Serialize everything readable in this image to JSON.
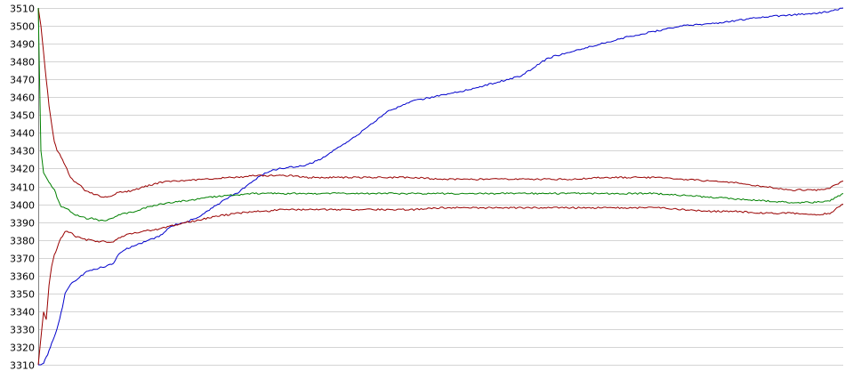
{
  "chart_data": {
    "type": "line",
    "title": "",
    "xlabel": "",
    "ylabel": "",
    "ylim": [
      3310,
      3510
    ],
    "yticks": [
      3310,
      3320,
      3330,
      3340,
      3350,
      3360,
      3370,
      3380,
      3390,
      3400,
      3410,
      3420,
      3430,
      3440,
      3450,
      3460,
      3470,
      3480,
      3490,
      3500,
      3510
    ],
    "yticks_labels": [
      "3310",
      "3320",
      "3330",
      "3340",
      "3350",
      "3360",
      "3370",
      "3380",
      "3390",
      "3400",
      "3410",
      "3420",
      "3430",
      "3440",
      "3450",
      "3460",
      "3470",
      "3480",
      "3490",
      "3500",
      "3510"
    ],
    "xlim": [
      0,
      300
    ],
    "grid": true,
    "legend": "none",
    "x": [
      0,
      1,
      2,
      3,
      4,
      5,
      6,
      7,
      8,
      9,
      10,
      12,
      14,
      16,
      18,
      20,
      22,
      25,
      28,
      30,
      33,
      36,
      40,
      45,
      50,
      55,
      60,
      65,
      70,
      75,
      80,
      85,
      90,
      95,
      100,
      105,
      110,
      115,
      120,
      130,
      140,
      150,
      160,
      170,
      180,
      190,
      200,
      210,
      220,
      230,
      240,
      250,
      260,
      270,
      280,
      290,
      295,
      300
    ],
    "series": [
      {
        "color": "#0000cc",
        "values": [
          3310,
          3310,
          3311,
          3314,
          3318,
          3322,
          3326,
          3330,
          3336,
          3342,
          3350,
          3355,
          3357,
          3360,
          3362,
          3363,
          3364,
          3365,
          3367,
          3372,
          3375,
          3377,
          3379,
          3382,
          3388,
          3390,
          3393,
          3398,
          3403,
          3407,
          3413,
          3418,
          3420,
          3421,
          3422,
          3425,
          3430,
          3435,
          3440,
          3452,
          3458,
          3461,
          3464,
          3468,
          3472,
          3482,
          3486,
          3490,
          3494,
          3497,
          3500,
          3501,
          3503,
          3505,
          3506,
          3507,
          3508,
          3510
        ]
      },
      {
        "color": "#990000",
        "values": [
          3510,
          3500,
          3485,
          3470,
          3455,
          3445,
          3435,
          3430,
          3428,
          3425,
          3422,
          3415,
          3412,
          3410,
          3407,
          3406,
          3405,
          3404,
          3405,
          3407,
          3407,
          3408,
          3410,
          3412,
          3413,
          3413,
          3414,
          3414,
          3415,
          3415,
          3416,
          3416,
          3416,
          3416,
          3415,
          3415,
          3415,
          3415,
          3415,
          3415,
          3415,
          3414,
          3414,
          3414,
          3414,
          3414,
          3414,
          3415,
          3415,
          3415,
          3414,
          3413,
          3412,
          3410,
          3408,
          3408,
          3409,
          3413
        ]
      },
      {
        "color": "#008000",
        "values": [
          3510,
          3430,
          3418,
          3415,
          3412,
          3410,
          3408,
          3404,
          3400,
          3398,
          3398,
          3396,
          3394,
          3393,
          3392,
          3392,
          3391,
          3391,
          3392,
          3394,
          3395,
          3396,
          3398,
          3400,
          3401,
          3402,
          3403,
          3404,
          3405,
          3405,
          3406,
          3406,
          3406,
          3406,
          3406,
          3406,
          3406,
          3406,
          3406,
          3406,
          3406,
          3406,
          3406,
          3406,
          3406,
          3406,
          3406,
          3406,
          3406,
          3406,
          3405,
          3404,
          3403,
          3402,
          3401,
          3401,
          3402,
          3406
        ]
      },
      {
        "color": "#990000",
        "values": [
          3310,
          3325,
          3340,
          3335,
          3355,
          3365,
          3372,
          3375,
          3380,
          3382,
          3385,
          3384,
          3382,
          3381,
          3380,
          3380,
          3379,
          3379,
          3379,
          3381,
          3383,
          3384,
          3385,
          3386,
          3388,
          3390,
          3391,
          3393,
          3394,
          3395,
          3396,
          3396,
          3397,
          3397,
          3397,
          3397,
          3397,
          3397,
          3397,
          3397,
          3397,
          3398,
          3398,
          3398,
          3398,
          3398,
          3398,
          3398,
          3398,
          3398,
          3397,
          3396,
          3396,
          3395,
          3395,
          3394,
          3395,
          3400
        ]
      }
    ]
  }
}
